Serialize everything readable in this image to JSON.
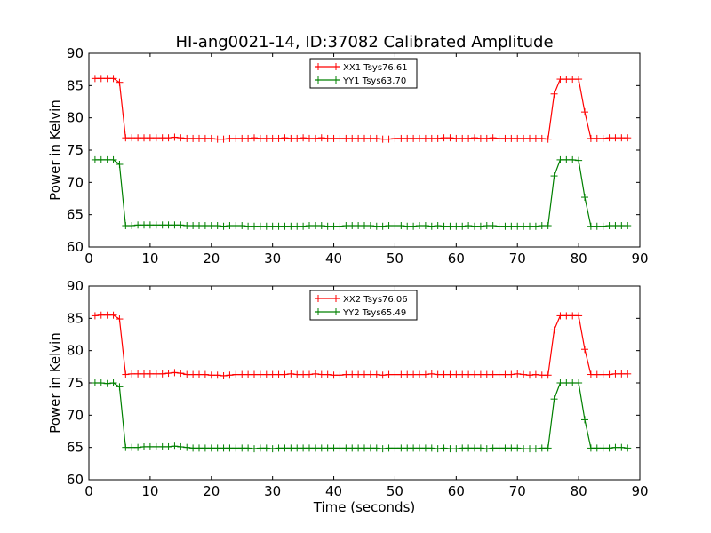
{
  "title": "HI-ang0021-14, ID:37082 Calibrated Amplitude",
  "chart_data": [
    {
      "type": "line",
      "ylabel": "Power in Kelvin",
      "xlabel": "",
      "xlim": [
        0,
        90
      ],
      "ylim": [
        60,
        90
      ],
      "xticks": [
        0,
        10,
        20,
        30,
        40,
        50,
        60,
        70,
        80,
        90
      ],
      "yticks": [
        60,
        65,
        70,
        75,
        80,
        85,
        90
      ],
      "legend_position": "top-center",
      "grid": false,
      "series": [
        {
          "name": "XX1 Tsys76.61",
          "color": "#ff0000",
          "x": [
            1,
            2,
            3,
            4,
            5,
            6,
            7,
            8,
            9,
            10,
            11,
            12,
            13,
            14,
            15,
            16,
            17,
            18,
            19,
            20,
            21,
            22,
            23,
            24,
            25,
            26,
            27,
            28,
            29,
            30,
            31,
            32,
            33,
            34,
            35,
            36,
            37,
            38,
            39,
            40,
            41,
            42,
            43,
            44,
            45,
            46,
            47,
            48,
            49,
            50,
            51,
            52,
            53,
            54,
            55,
            56,
            57,
            58,
            59,
            60,
            61,
            62,
            63,
            64,
            65,
            66,
            67,
            68,
            69,
            70,
            71,
            72,
            73,
            74,
            75,
            76,
            77,
            78,
            79,
            80,
            81,
            82,
            83,
            84,
            85,
            86,
            87,
            88
          ],
          "values": [
            86.1,
            86.1,
            86.1,
            86.1,
            85.5,
            76.9,
            76.9,
            76.9,
            76.9,
            76.9,
            76.9,
            76.9,
            76.9,
            77.0,
            76.9,
            76.8,
            76.8,
            76.8,
            76.8,
            76.8,
            76.7,
            76.7,
            76.8,
            76.8,
            76.8,
            76.8,
            76.9,
            76.8,
            76.8,
            76.8,
            76.8,
            76.9,
            76.8,
            76.8,
            76.9,
            76.8,
            76.8,
            76.9,
            76.8,
            76.8,
            76.8,
            76.8,
            76.8,
            76.8,
            76.8,
            76.8,
            76.8,
            76.7,
            76.7,
            76.8,
            76.8,
            76.8,
            76.8,
            76.8,
            76.8,
            76.8,
            76.8,
            76.9,
            76.9,
            76.8,
            76.8,
            76.8,
            76.9,
            76.8,
            76.8,
            76.9,
            76.8,
            76.8,
            76.8,
            76.8,
            76.8,
            76.8,
            76.8,
            76.8,
            76.7,
            83.7,
            86.0,
            86.0,
            86.0,
            86.0,
            80.9,
            76.8,
            76.8,
            76.8,
            76.9,
            76.9,
            76.9,
            76.9
          ]
        },
        {
          "name": "YY1 Tsys63.70",
          "color": "#008000",
          "x": [
            1,
            2,
            3,
            4,
            5,
            6,
            7,
            8,
            9,
            10,
            11,
            12,
            13,
            14,
            15,
            16,
            17,
            18,
            19,
            20,
            21,
            22,
            23,
            24,
            25,
            26,
            27,
            28,
            29,
            30,
            31,
            32,
            33,
            34,
            35,
            36,
            37,
            38,
            39,
            40,
            41,
            42,
            43,
            44,
            45,
            46,
            47,
            48,
            49,
            50,
            51,
            52,
            53,
            54,
            55,
            56,
            57,
            58,
            59,
            60,
            61,
            62,
            63,
            64,
            65,
            66,
            67,
            68,
            69,
            70,
            71,
            72,
            73,
            74,
            75,
            76,
            77,
            78,
            79,
            80,
            81,
            82,
            83,
            84,
            85,
            86,
            87,
            88
          ],
          "values": [
            73.5,
            73.5,
            73.5,
            73.5,
            72.8,
            63.3,
            63.3,
            63.4,
            63.4,
            63.4,
            63.4,
            63.4,
            63.4,
            63.4,
            63.4,
            63.3,
            63.3,
            63.3,
            63.3,
            63.3,
            63.3,
            63.2,
            63.3,
            63.3,
            63.3,
            63.2,
            63.2,
            63.2,
            63.2,
            63.2,
            63.2,
            63.2,
            63.2,
            63.2,
            63.2,
            63.3,
            63.3,
            63.3,
            63.2,
            63.2,
            63.2,
            63.3,
            63.3,
            63.3,
            63.3,
            63.3,
            63.2,
            63.2,
            63.3,
            63.3,
            63.3,
            63.2,
            63.2,
            63.3,
            63.3,
            63.2,
            63.3,
            63.2,
            63.2,
            63.2,
            63.2,
            63.3,
            63.2,
            63.2,
            63.3,
            63.3,
            63.2,
            63.2,
            63.2,
            63.2,
            63.2,
            63.2,
            63.2,
            63.3,
            63.3,
            71.0,
            73.5,
            73.5,
            73.5,
            73.4,
            67.7,
            63.2,
            63.2,
            63.2,
            63.3,
            63.3,
            63.3,
            63.3
          ]
        }
      ]
    },
    {
      "type": "line",
      "ylabel": "Power in Kelvin",
      "xlabel": "Time (seconds)",
      "xlim": [
        0,
        90
      ],
      "ylim": [
        60,
        90
      ],
      "xticks": [
        0,
        10,
        20,
        30,
        40,
        50,
        60,
        70,
        80,
        90
      ],
      "yticks": [
        60,
        65,
        70,
        75,
        80,
        85,
        90
      ],
      "legend_position": "top-center",
      "grid": false,
      "series": [
        {
          "name": "XX2 Tsys76.06",
          "color": "#ff0000",
          "x": [
            1,
            2,
            3,
            4,
            5,
            6,
            7,
            8,
            9,
            10,
            11,
            12,
            13,
            14,
            15,
            16,
            17,
            18,
            19,
            20,
            21,
            22,
            23,
            24,
            25,
            26,
            27,
            28,
            29,
            30,
            31,
            32,
            33,
            34,
            35,
            36,
            37,
            38,
            39,
            40,
            41,
            42,
            43,
            44,
            45,
            46,
            47,
            48,
            49,
            50,
            51,
            52,
            53,
            54,
            55,
            56,
            57,
            58,
            59,
            60,
            61,
            62,
            63,
            64,
            65,
            66,
            67,
            68,
            69,
            70,
            71,
            72,
            73,
            74,
            75,
            76,
            77,
            78,
            79,
            80,
            81,
            82,
            83,
            84,
            85,
            86,
            87,
            88
          ],
          "values": [
            85.4,
            85.5,
            85.5,
            85.5,
            84.9,
            76.3,
            76.4,
            76.4,
            76.4,
            76.4,
            76.4,
            76.4,
            76.5,
            76.6,
            76.5,
            76.3,
            76.3,
            76.3,
            76.3,
            76.2,
            76.2,
            76.1,
            76.2,
            76.3,
            76.3,
            76.3,
            76.3,
            76.3,
            76.3,
            76.3,
            76.3,
            76.3,
            76.4,
            76.3,
            76.3,
            76.3,
            76.4,
            76.3,
            76.3,
            76.2,
            76.2,
            76.3,
            76.3,
            76.3,
            76.3,
            76.3,
            76.3,
            76.2,
            76.3,
            76.3,
            76.3,
            76.3,
            76.3,
            76.3,
            76.3,
            76.4,
            76.3,
            76.3,
            76.3,
            76.3,
            76.3,
            76.3,
            76.3,
            76.3,
            76.3,
            76.3,
            76.3,
            76.3,
            76.3,
            76.4,
            76.3,
            76.2,
            76.3,
            76.2,
            76.2,
            83.2,
            85.4,
            85.4,
            85.4,
            85.4,
            80.2,
            76.3,
            76.3,
            76.3,
            76.3,
            76.4,
            76.4,
            76.4
          ]
        },
        {
          "name": "YY2 Tsys65.49",
          "color": "#008000",
          "x": [
            1,
            2,
            3,
            4,
            5,
            6,
            7,
            8,
            9,
            10,
            11,
            12,
            13,
            14,
            15,
            16,
            17,
            18,
            19,
            20,
            21,
            22,
            23,
            24,
            25,
            26,
            27,
            28,
            29,
            30,
            31,
            32,
            33,
            34,
            35,
            36,
            37,
            38,
            39,
            40,
            41,
            42,
            43,
            44,
            45,
            46,
            47,
            48,
            49,
            50,
            51,
            52,
            53,
            54,
            55,
            56,
            57,
            58,
            59,
            60,
            61,
            62,
            63,
            64,
            65,
            66,
            67,
            68,
            69,
            70,
            71,
            72,
            73,
            74,
            75,
            76,
            77,
            78,
            79,
            80,
            81,
            82,
            83,
            84,
            85,
            86,
            87,
            88
          ],
          "values": [
            75.0,
            75.0,
            74.9,
            75.0,
            74.4,
            65.0,
            65.0,
            65.0,
            65.1,
            65.1,
            65.1,
            65.1,
            65.1,
            65.2,
            65.1,
            65.0,
            64.9,
            64.9,
            64.9,
            64.9,
            64.9,
            64.9,
            64.9,
            64.9,
            64.9,
            64.9,
            64.8,
            64.9,
            64.9,
            64.8,
            64.9,
            64.9,
            64.9,
            64.9,
            64.9,
            64.9,
            64.9,
            64.9,
            64.9,
            64.9,
            64.9,
            64.9,
            64.9,
            64.9,
            64.9,
            64.9,
            64.9,
            64.8,
            64.9,
            64.9,
            64.9,
            64.9,
            64.9,
            64.9,
            64.9,
            64.9,
            64.8,
            64.9,
            64.8,
            64.8,
            64.9,
            64.9,
            64.9,
            64.9,
            64.8,
            64.9,
            64.9,
            64.9,
            64.9,
            64.9,
            64.8,
            64.8,
            64.8,
            64.9,
            64.9,
            72.5,
            75.0,
            75.0,
            75.0,
            75.0,
            69.3,
            64.9,
            64.9,
            64.9,
            64.9,
            65.0,
            65.0,
            64.9
          ]
        }
      ]
    }
  ]
}
